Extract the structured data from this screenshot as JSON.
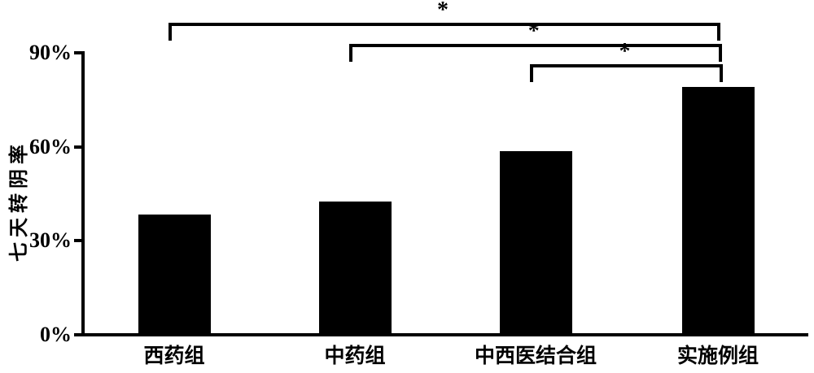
{
  "figure": {
    "background": "#ffffff",
    "ink_color": "#000000"
  },
  "chart_data": {
    "type": "bar",
    "title": "",
    "xlabel": "",
    "ylabel": "七天转阴率",
    "categories": [
      "西药组",
      "中药组",
      "中西医结合组",
      "实施例组"
    ],
    "values": [
      38.5,
      42.5,
      58.5,
      79
    ],
    "bar_color": "#000000",
    "background_color": "#ffffff",
    "ylim": [
      0,
      90
    ],
    "yticks": [
      {
        "label": "0%",
        "value": 0
      },
      {
        "label": "30%",
        "value": 30
      },
      {
        "label": "60%",
        "value": 60
      },
      {
        "label": "90%",
        "value": 90
      }
    ],
    "grid": false,
    "legend": null,
    "significance_brackets": [
      {
        "from_index": 0,
        "to_index": 3,
        "from": "西药组",
        "to": "实施例组",
        "label": "*",
        "level": 0
      },
      {
        "from_index": 1,
        "to_index": 3,
        "from": "中药组",
        "to": "实施例组",
        "label": "*",
        "level": 1
      },
      {
        "from_index": 2,
        "to_index": 3,
        "from": "中西医结合组",
        "to": "实施例组",
        "label": "*",
        "level": 2
      }
    ]
  }
}
